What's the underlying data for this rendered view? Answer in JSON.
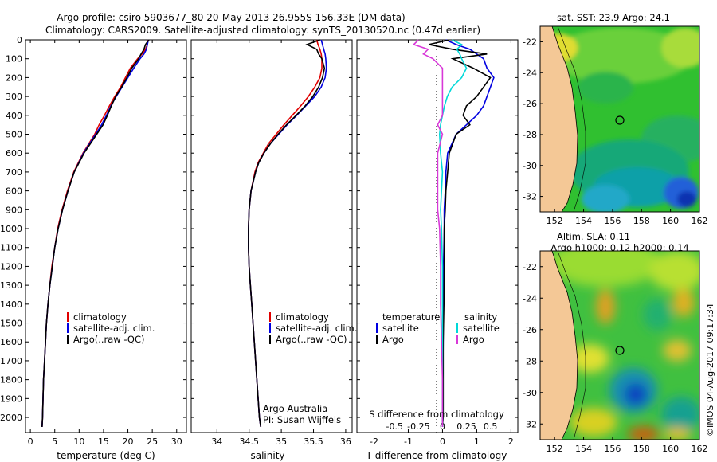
{
  "header": {
    "line1": "Argo profile: csiro 5903677_80 20-May-2013 26.955S 156.33E (DM data)",
    "line2": "Climatology: CARS2009. Satellite-adjusted climatology: synTS_20130520.nc (0.47d earlier)"
  },
  "colors": {
    "climatology": "#e00000",
    "satellite": "#0000e0",
    "argo": "#000000",
    "cyan": "#00d8d8",
    "magenta": "#d838d8",
    "land": "#f4c896"
  },
  "chart_data": [
    {
      "type": "line",
      "id": "temperature",
      "xlabel": "temperature (deg C)",
      "xlim": [
        -1,
        32
      ],
      "ylim": [
        0,
        2080
      ],
      "xticks": [
        "0",
        "5",
        "10",
        "15",
        "20",
        "25",
        "30"
      ],
      "yticks": [
        "0",
        "100",
        "200",
        "300",
        "400",
        "500",
        "600",
        "700",
        "800",
        "900",
        "1000",
        "1100",
        "1200",
        "1300",
        "1400",
        "1500",
        "1600",
        "1700",
        "1800",
        "1900",
        "2000"
      ],
      "legend": [
        "climatology",
        "satellite-adj. clim.",
        "Argo(..raw -QC)"
      ],
      "depth": [
        0,
        25,
        50,
        75,
        100,
        150,
        200,
        250,
        300,
        350,
        400,
        450,
        500,
        600,
        700,
        800,
        900,
        1000,
        1100,
        1200,
        1300,
        1400,
        1500,
        1600,
        1700,
        1800,
        1900,
        2000,
        2050
      ],
      "series": [
        {
          "name": "climatology",
          "color": "climatology",
          "values": [
            24.1,
            24.0,
            23.6,
            22.9,
            22.0,
            20.5,
            19.5,
            18.5,
            17.3,
            16.2,
            15.2,
            14.1,
            13.2,
            10.8,
            8.9,
            7.6,
            6.5,
            5.6,
            5.0,
            4.4,
            4.0,
            3.6,
            3.3,
            3.1,
            2.9,
            2.7,
            2.6,
            2.5,
            2.4
          ]
        },
        {
          "name": "satellite-adj. clim.",
          "color": "satellite",
          "values": [
            24.2,
            24.0,
            23.8,
            23.3,
            22.5,
            21.2,
            20.0,
            18.8,
            17.6,
            16.5,
            15.6,
            14.6,
            13.4,
            10.9,
            9.0,
            7.7,
            6.6,
            5.7,
            5.0,
            4.5,
            4.0,
            3.6,
            3.3,
            3.1,
            2.9,
            2.7,
            2.6,
            2.5,
            2.4
          ]
        },
        {
          "name": "Argo(..raw -QC)",
          "color": "argo",
          "values": [
            24.3,
            23.6,
            23.3,
            22.7,
            22.2,
            20.8,
            19.8,
            18.7,
            17.5,
            16.6,
            15.8,
            14.9,
            13.6,
            11.0,
            9.0,
            7.7,
            6.6,
            5.7,
            5.0,
            4.5,
            4.0,
            3.6,
            3.3,
            3.1,
            2.9,
            2.7,
            2.6,
            2.5,
            2.4
          ]
        }
      ]
    },
    {
      "type": "line",
      "id": "salinity",
      "xlabel": "salinity",
      "xlim": [
        33.6,
        36.1
      ],
      "ylim": [
        0,
        2080
      ],
      "xticks": [
        "34",
        "34.5",
        "35",
        "35.5",
        "36"
      ],
      "legend": [
        "climatology",
        "satellite-adj. clim.",
        "Argo(..raw -QC)"
      ],
      "annotation": [
        "Argo Australia",
        "PI: Susan Wijffels"
      ],
      "depth": [
        0,
        25,
        50,
        75,
        100,
        150,
        200,
        250,
        300,
        350,
        400,
        450,
        500,
        550,
        600,
        650,
        700,
        800,
        900,
        1000,
        1100,
        1200,
        1300,
        1400,
        1500,
        1600,
        1700,
        1800,
        1900,
        2000,
        2050
      ],
      "series": [
        {
          "name": "climatology",
          "color": "climatology",
          "values": [
            35.55,
            35.57,
            35.6,
            35.62,
            35.63,
            35.63,
            35.6,
            35.52,
            35.42,
            35.3,
            35.17,
            35.04,
            34.92,
            34.8,
            34.72,
            34.64,
            34.59,
            34.53,
            34.5,
            34.49,
            34.49,
            34.5,
            34.52,
            34.54,
            34.56,
            34.58,
            34.6,
            34.62,
            34.64,
            34.66,
            34.68
          ]
        },
        {
          "name": "satellite-adj. clim.",
          "color": "satellite",
          "values": [
            35.62,
            35.64,
            35.66,
            35.68,
            35.69,
            35.7,
            35.68,
            35.62,
            35.52,
            35.38,
            35.24,
            35.09,
            34.96,
            34.83,
            34.73,
            34.65,
            34.6,
            34.53,
            34.5,
            34.49,
            34.49,
            34.5,
            34.52,
            34.54,
            34.56,
            34.58,
            34.6,
            34.62,
            34.64,
            34.66,
            34.68
          ]
        },
        {
          "name": "Argo(..raw -QC)",
          "color": "argo",
          "values": [
            35.6,
            35.4,
            35.55,
            35.58,
            35.63,
            35.67,
            35.64,
            35.58,
            35.49,
            35.37,
            35.23,
            35.08,
            34.95,
            34.83,
            34.73,
            34.65,
            34.6,
            34.53,
            34.5,
            34.49,
            34.49,
            34.5,
            34.52,
            34.54,
            34.56,
            34.58,
            34.6,
            34.62,
            34.64,
            34.66,
            34.68
          ]
        }
      ]
    },
    {
      "type": "line",
      "id": "difference",
      "xlabel": "T difference from climatology",
      "xlabel_top": "S difference from climatology",
      "xlim": [
        -2.5,
        2.2
      ],
      "ylim": [
        0,
        2080
      ],
      "xticks": [
        "-2",
        "-1",
        "0",
        "1",
        "2"
      ],
      "s_ticks": [
        "-0.5",
        "-0.25",
        "0",
        "0.25",
        "0.5"
      ],
      "legend_left_title": "temperature",
      "legend_right_title": "salinity",
      "legend_left": [
        "satellite",
        "Argo"
      ],
      "legend_right": [
        "satellite",
        "Argo"
      ],
      "depth": [
        0,
        25,
        50,
        75,
        100,
        150,
        200,
        250,
        300,
        350,
        400,
        450,
        500,
        600,
        700,
        800,
        900,
        1000,
        1200,
        1400,
        1600,
        1800,
        2000,
        2050
      ],
      "series": [
        {
          "name": "T satellite",
          "color": "satellite",
          "values": [
            0.1,
            0.4,
            0.8,
            1.0,
            1.2,
            1.3,
            1.5,
            1.4,
            1.3,
            1.2,
            1.0,
            0.7,
            0.4,
            0.15,
            0.1,
            0.08,
            0.05,
            0.05,
            0.03,
            0.02,
            0.02,
            0.01,
            0.0,
            0.0
          ]
        },
        {
          "name": "T Argo",
          "color": "argo",
          "values": [
            0.2,
            -0.4,
            0.3,
            1.3,
            0.3,
            0.9,
            1.4,
            1.2,
            1.0,
            0.7,
            0.6,
            0.8,
            0.4,
            0.2,
            0.15,
            0.1,
            0.08,
            0.05,
            0.05,
            0.04,
            0.02,
            0.02,
            0.02,
            0.0
          ]
        },
        {
          "name": "S satellite",
          "color": "cyan",
          "values": [
            0.1,
            0.2,
            0.15,
            0.18,
            0.2,
            0.25,
            0.2,
            0.1,
            0.05,
            0.02,
            0.0,
            -0.02,
            -0.03,
            -0.02,
            0.0,
            -0.01,
            -0.02,
            -0.01,
            0.0,
            0.0,
            0.0,
            0.0,
            0.0,
            0.0
          ]
        },
        {
          "name": "S Argo",
          "color": "magenta",
          "values": [
            -0.25,
            -0.3,
            -0.15,
            -0.2,
            -0.1,
            0.0,
            0.0,
            0.0,
            0.0,
            0.0,
            0.0,
            -0.05,
            0.0,
            -0.05,
            -0.05,
            -0.05,
            -0.05,
            -0.03,
            -0.02,
            -0.02,
            -0.01,
            0.0,
            0.0,
            0.0
          ]
        }
      ]
    },
    {
      "type": "heatmap",
      "id": "sst_map",
      "title": "sat. SST: 23.9 Argo: 24.1",
      "xlim": [
        151,
        162
      ],
      "ylim": [
        -33,
        -21
      ],
      "xticks": [
        "152",
        "154",
        "156",
        "158",
        "160",
        "162"
      ],
      "yticks": [
        "-22",
        "-24",
        "-26",
        "-28",
        "-30",
        "-32"
      ],
      "marker": {
        "lon": 156.33,
        "lat": -26.955
      }
    },
    {
      "type": "heatmap",
      "id": "sla_map",
      "title": "Altim. SLA: 0.11",
      "subtitle": "Argo h1000: 0.12 h2000: 0.14",
      "xlim": [
        151,
        162
      ],
      "ylim": [
        -33,
        -21
      ],
      "xticks": [
        "152",
        "154",
        "156",
        "158",
        "160",
        "162"
      ],
      "yticks": [
        "-22",
        "-24",
        "-26",
        "-28",
        "-30",
        "-32"
      ],
      "marker": {
        "lon": 156.33,
        "lat": -26.955
      }
    }
  ],
  "footer": {
    "credit": "©IMOS 04-Aug-2017 09:17:34"
  }
}
